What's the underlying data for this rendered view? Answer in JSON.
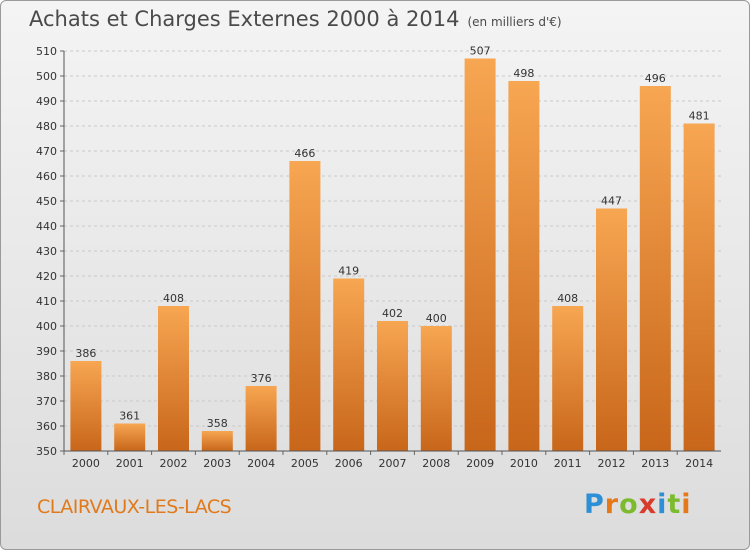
{
  "header": {
    "title": "Achats et Charges Externes 2000 à 2014",
    "subtitle": "(en milliers d'€)"
  },
  "footer": {
    "place": "CLAIRVAUX-LES-LACS",
    "logo_letters": [
      "P",
      "r",
      "o",
      "x",
      "i",
      "t",
      "i"
    ],
    "logo_colors": [
      "#2d8fd6",
      "#e67817",
      "#7dbb2e",
      "#d83a2b",
      "#2d8fd6",
      "#7dbb2e",
      "#e67817"
    ]
  },
  "colors": {
    "bar_light": "#f7a652",
    "bar_dark": "#c8661a",
    "grid": "#c9c9c9"
  },
  "chart_data": {
    "type": "bar",
    "title": "Achats et Charges Externes 2000 à 2014",
    "subtitle": "(en milliers d'€)",
    "categories": [
      "2000",
      "2001",
      "2002",
      "2003",
      "2004",
      "2005",
      "2006",
      "2007",
      "2008",
      "2009",
      "2010",
      "2011",
      "2012",
      "2013",
      "2014"
    ],
    "values": [
      386,
      361,
      408,
      358,
      376,
      466,
      419,
      402,
      400,
      507,
      498,
      408,
      447,
      496,
      481
    ],
    "ylim": [
      350,
      510
    ],
    "yticks": [
      350,
      360,
      370,
      380,
      390,
      400,
      410,
      420,
      430,
      440,
      450,
      460,
      470,
      480,
      490,
      500,
      510
    ],
    "grid": true,
    "xlabel": "",
    "ylabel": ""
  }
}
